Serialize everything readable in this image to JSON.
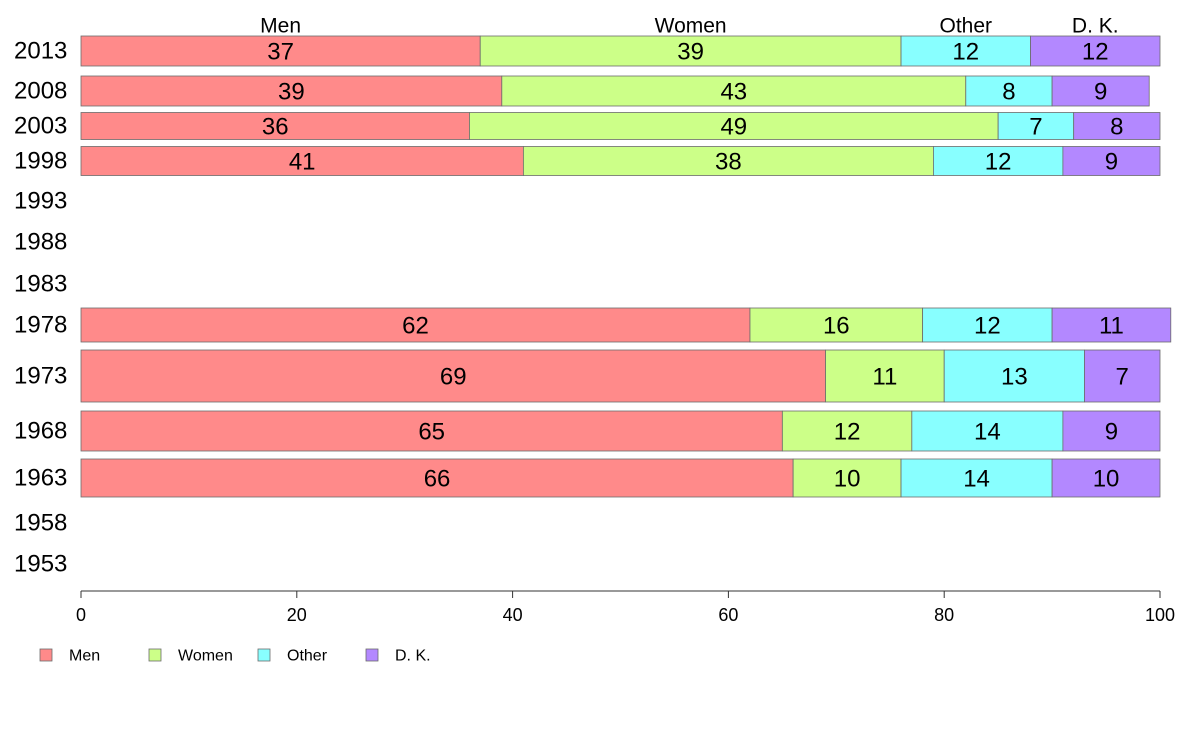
{
  "chart_data": {
    "type": "bar",
    "orientation": "horizontal",
    "stacked": true,
    "categories": [
      "2013",
      "2008",
      "2003",
      "1998",
      "1993",
      "1988",
      "1983",
      "1978",
      "1973",
      "1968",
      "1963",
      "1958",
      "1953"
    ],
    "series": [
      {
        "name": "Men",
        "color": "#ff8a8a",
        "values": [
          37,
          39,
          36,
          41,
          null,
          null,
          null,
          62,
          69,
          65,
          66,
          null,
          null
        ]
      },
      {
        "name": "Women",
        "color": "#ccff88",
        "values": [
          39,
          43,
          49,
          38,
          null,
          null,
          null,
          16,
          11,
          12,
          10,
          null,
          null
        ]
      },
      {
        "name": "Other",
        "color": "#88ffff",
        "values": [
          12,
          8,
          7,
          12,
          null,
          null,
          null,
          12,
          13,
          14,
          14,
          null,
          null
        ]
      },
      {
        "name": "D. K.",
        "color": "#b388ff",
        "values": [
          12,
          9,
          8,
          9,
          null,
          null,
          null,
          11,
          7,
          9,
          10,
          null,
          null
        ]
      }
    ],
    "column_headers": [
      "Men",
      "Women",
      "Other",
      "D. K."
    ],
    "xlim": [
      0,
      100
    ],
    "x_ticks": [
      "0",
      "20",
      "40",
      "60",
      "80",
      "100"
    ],
    "title": "",
    "xlabel": "",
    "ylabel": "",
    "grid": false,
    "legend_position": "bottom-left"
  }
}
